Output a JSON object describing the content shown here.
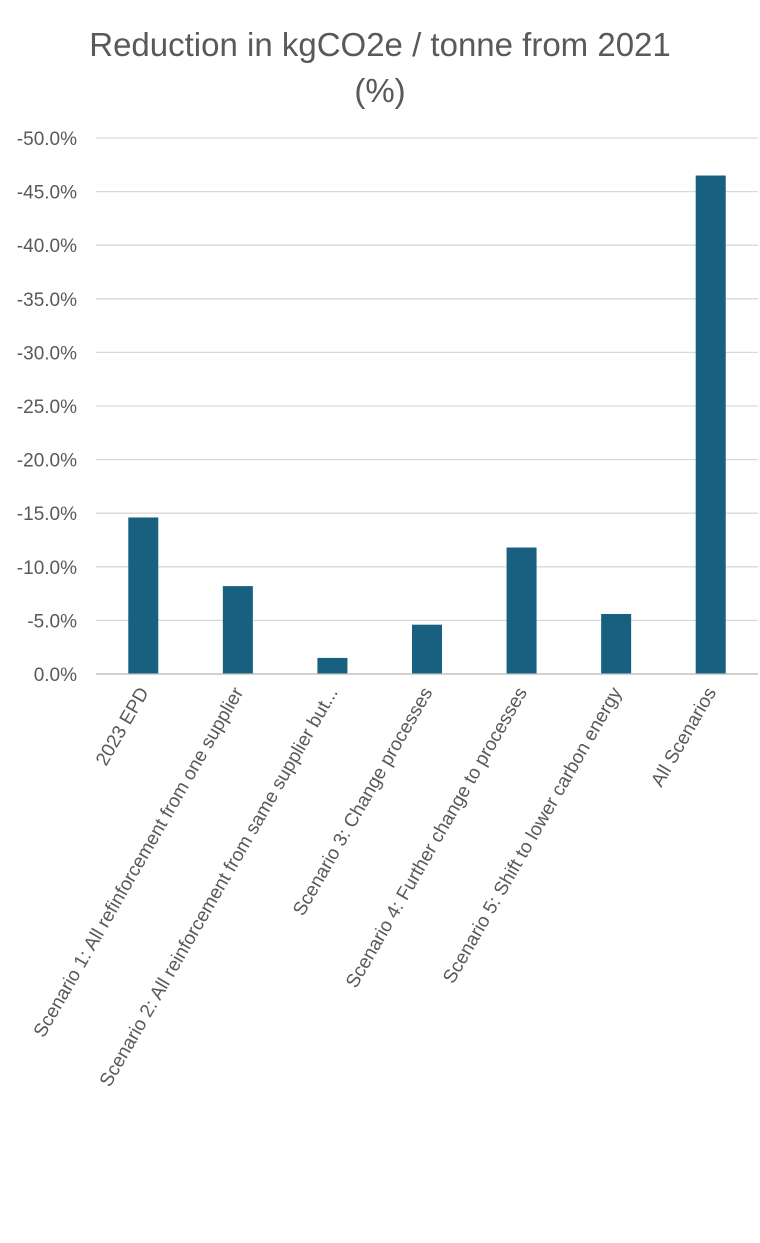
{
  "chart_data": {
    "type": "bar",
    "title": "Reduction in kgCO2e / tonne from 2021 (%)",
    "xlabel": "",
    "ylabel": "",
    "categories": [
      "2023 EPD",
      "Scenario 1: All refinforcement from one supplier",
      "Scenario 2: All reinforcement from same supplier but...",
      "Scenario 3: Change processes",
      "Scenario 4: Further change to processes",
      "Scenario 5: Shift to lower carbon energy",
      "All Scenarios"
    ],
    "values": [
      -14.6,
      -8.2,
      -1.5,
      -4.6,
      -11.8,
      -5.6,
      -46.5
    ],
    "ylim": [
      0,
      -50
    ],
    "y_axis_reversed": true,
    "yticks": [
      "0.0%",
      "-5.0%",
      "-10.0%",
      "-15.0%",
      "-20.0%",
      "-25.0%",
      "-30.0%",
      "-35.0%",
      "-40.0%",
      "-45.0%",
      "-50.0%"
    ],
    "grid": true,
    "legend": "none",
    "bar_color": "#17607f"
  }
}
